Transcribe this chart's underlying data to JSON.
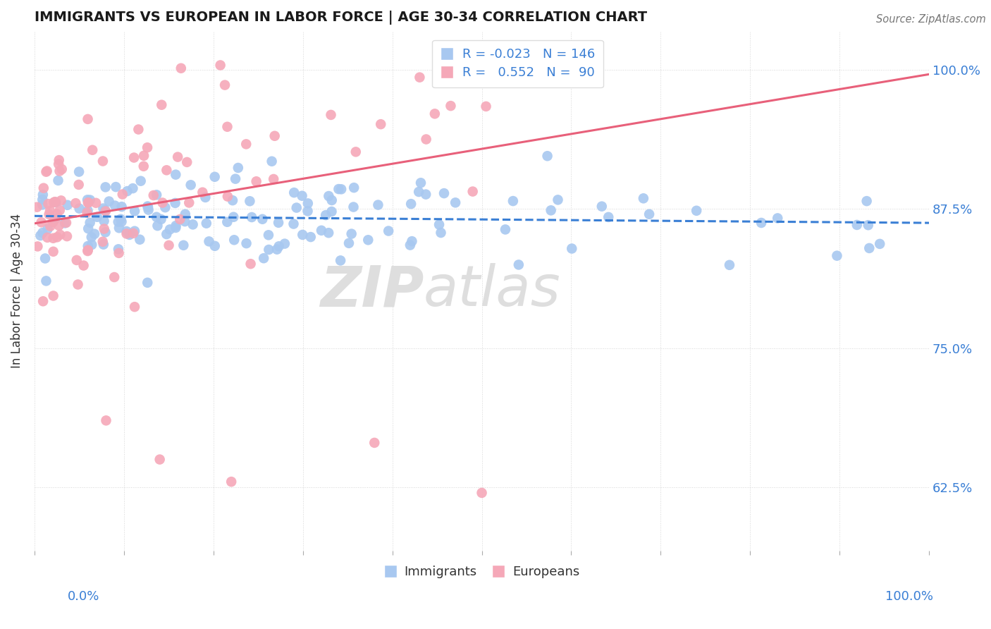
{
  "title": "IMMIGRANTS VS EUROPEAN IN LABOR FORCE | AGE 30-34 CORRELATION CHART",
  "source": "Source: ZipAtlas.com",
  "ylabel": "In Labor Force | Age 30-34",
  "right_ytick_labels": [
    "62.5%",
    "75.0%",
    "87.5%",
    "100.0%"
  ],
  "right_ytick_vals": [
    0.625,
    0.75,
    0.875,
    1.0
  ],
  "legend_R_immigrants": "-0.023",
  "legend_N_immigrants": "146",
  "legend_R_europeans": "0.552",
  "legend_N_europeans": "90",
  "immigrant_color": "#a8c8f0",
  "european_color": "#f5a8b8",
  "immigrant_line_color": "#3a7fd5",
  "european_line_color": "#e8607a",
  "background_color": "#ffffff",
  "xmin": 0.0,
  "xmax": 1.0,
  "ymin": 0.568,
  "ymax": 1.035
}
